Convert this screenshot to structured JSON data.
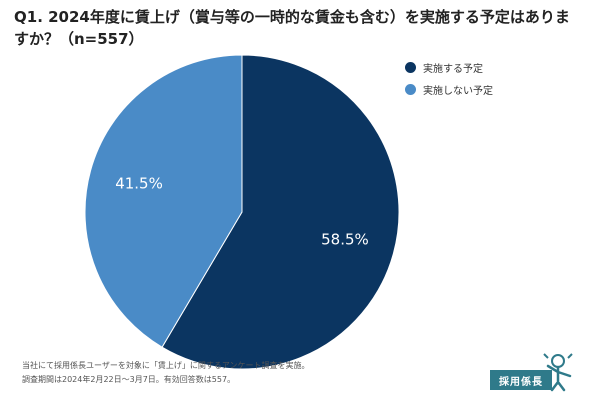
{
  "title": "Q1. 2024年度に賃上げ（賞与等の一時的な賃金も含む）を実施する予定はありますか？（n=557）",
  "chart_data": {
    "type": "pie",
    "title": "Q1. 2024年度に賃上げ（賞与等の一時的な賃金も含む）を実施する予定はありますか？（n=557）",
    "n": 557,
    "start_angle_deg": 0,
    "direction": "clockwise",
    "legend_position": "top-right",
    "series": [
      {
        "name": "実施する予定",
        "value": 58.5,
        "label": "58.5%",
        "color": "#0b3561"
      },
      {
        "name": "実施しない予定",
        "value": 41.5,
        "label": "41.5%",
        "color": "#4a8bc7"
      }
    ]
  },
  "footnote": {
    "line1": "当社にて採用係長ユーザーを対象に「賃上げ」に関するアンケート調査を実施。",
    "line2": "調査期間は2024年2月22日〜3月7日。有効回答数は557。"
  },
  "logo": {
    "text": "採用係長",
    "color": "#2f7a8a"
  }
}
